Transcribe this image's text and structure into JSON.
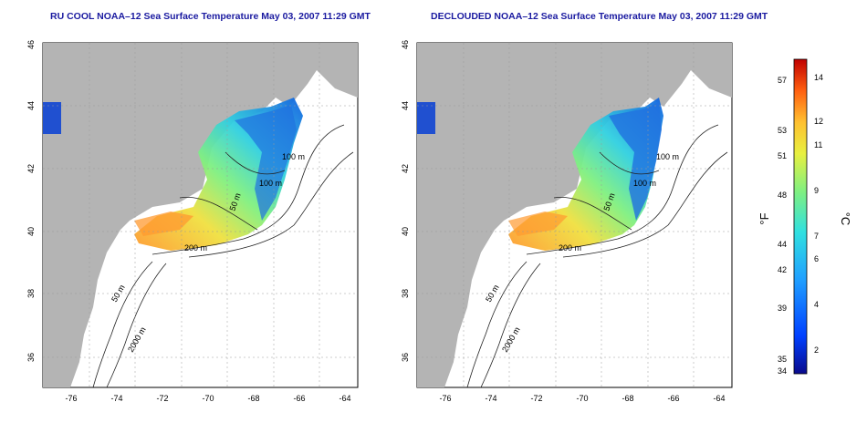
{
  "maps": [
    {
      "title": "RU COOL NOAA–12 Sea Surface Temperature May 03, 2007 11:29 GMT",
      "x_ticks": [
        "-76",
        "-74",
        "-72",
        "-70",
        "-68",
        "-66",
        "-64"
      ],
      "y_ticks": [
        "36",
        "38",
        "40",
        "42",
        "44",
        "46"
      ],
      "contours": [
        "100 m",
        "100 m",
        "50 m",
        "200 m",
        "50 m",
        "2000 m"
      ]
    },
    {
      "title": "DECLOUDED NOAA–12 Sea Surface Temperature May 03, 2007 11:29 GMT",
      "x_ticks": [
        "-76",
        "-74",
        "-72",
        "-70",
        "-68",
        "-66",
        "-64"
      ],
      "y_ticks": [
        "36",
        "38",
        "40",
        "42",
        "44",
        "46"
      ],
      "contours": [
        "100 m",
        "100 m",
        "50 m",
        "200 m",
        "50 m",
        "2000 m"
      ]
    }
  ],
  "colorbar": {
    "f_label": "°F",
    "c_label": "°C",
    "f_ticks": [
      "57",
      "53",
      "51",
      "48",
      "44",
      "42",
      "39",
      "35",
      "34"
    ],
    "c_ticks": [
      "14",
      "12",
      "11",
      "9",
      "7",
      "6",
      "4",
      "2"
    ],
    "colors": [
      "#0a0a8c",
      "#0040ff",
      "#20a0ff",
      "#30e0e0",
      "#80f080",
      "#e8f040",
      "#ffc030",
      "#ff6010",
      "#c00000"
    ]
  },
  "land_color": "#b4b4b4",
  "ocean_color": "#ffffff"
}
